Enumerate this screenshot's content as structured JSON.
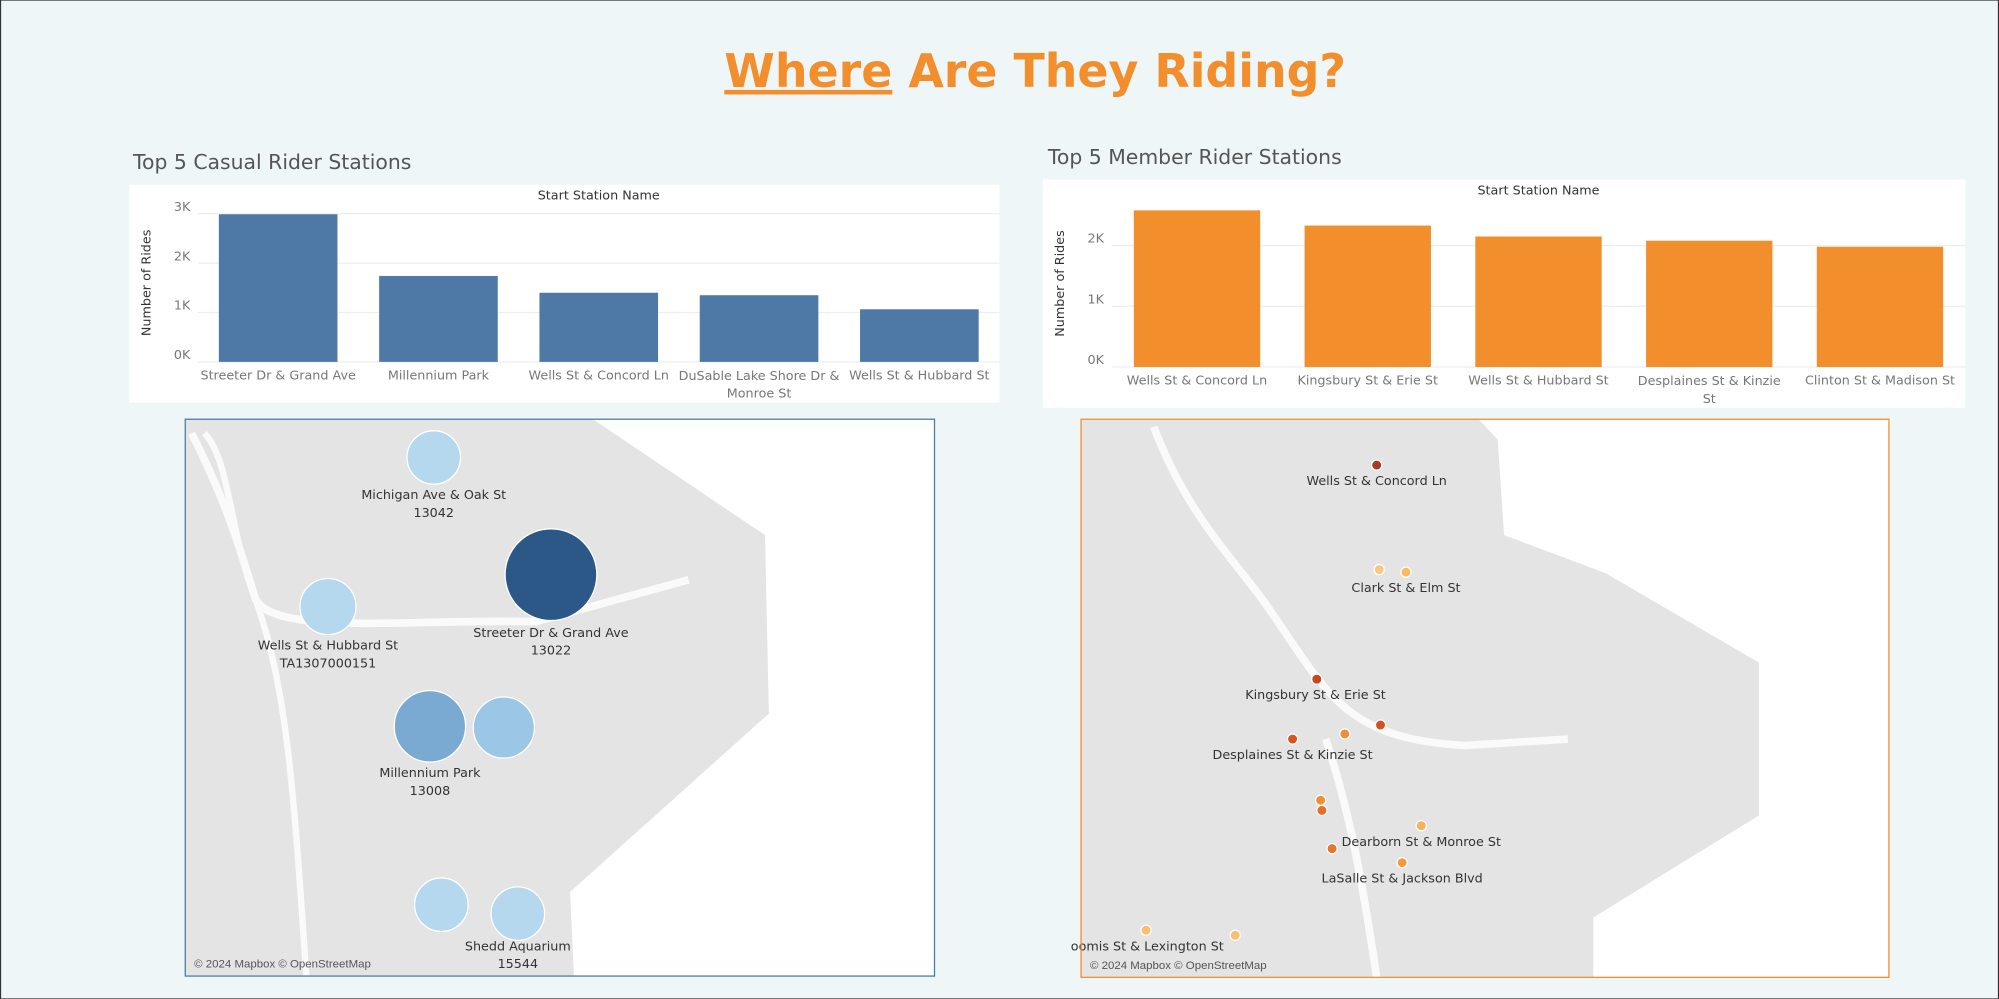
{
  "title": {
    "link": "Where",
    "text": "Are They Riding?"
  },
  "chart_data": [
    {
      "type": "bar",
      "title": "Top 5 Casual Rider Stations",
      "x_label": "Start Station Name",
      "y_label": "Number of Rides",
      "categories": [
        "Streeter Dr & Grand Ave",
        "Millennium Park",
        "Wells St & Concord Ln",
        "DuSable Lake Shore Dr & Monroe St",
        "Wells St & Hubbard St"
      ],
      "values": [
        2990,
        1740,
        1400,
        1350,
        1065
      ],
      "color": "#4e79a7",
      "ylim": [
        0,
        3200
      ],
      "yticks": [
        {
          "value": 0,
          "label": "0K"
        },
        {
          "value": 1000,
          "label": "1K"
        },
        {
          "value": 2000,
          "label": "2K"
        },
        {
          "value": 3000,
          "label": "3K"
        }
      ],
      "grid": true
    },
    {
      "type": "bar",
      "title": "Top 5 Member Rider Stations",
      "x_label": "Start Station Name",
      "y_label": "Number of Rides",
      "categories": [
        "Wells St & Concord Ln",
        "Kingsbury St & Erie St",
        "Wells St & Hubbard St",
        "Desplaines St & Kinzie St",
        "Clinton St & Madison St"
      ],
      "values": [
        2580,
        2330,
        2150,
        2080,
        1980
      ],
      "color": "#f28e2b",
      "ylim": [
        0,
        2750
      ],
      "yticks": [
        {
          "value": 0,
          "label": "0K"
        },
        {
          "value": 1000,
          "label": "1K"
        },
        {
          "value": 2000,
          "label": "2K"
        }
      ],
      "grid": true
    }
  ],
  "maps": [
    {
      "attribution": "© 2024 Mapbox © OpenStreetMap",
      "border": "#4e79a7",
      "markers": [
        {
          "label": "Michigan Ave & Oak St",
          "id": "13042",
          "color": "#b5d8ee"
        },
        {
          "label": "Streeter Dr & Grand Ave",
          "id": "13022",
          "color": "#2c5887"
        },
        {
          "label": "Wells St & Hubbard St",
          "id": "TA1307000151",
          "color": "#b5d8ee"
        },
        {
          "label": "Millennium Park",
          "id": "13008",
          "color": "#7aaad1"
        },
        {
          "label": "Shedd Aquarium",
          "id": "15544",
          "color": "#b5d8ee"
        }
      ]
    },
    {
      "attribution": "© 2024 Mapbox © OpenStreetMap",
      "border": "#f28e2b",
      "markers": [
        {
          "label": "Wells St & Concord Ln",
          "color": "#a63a28"
        },
        {
          "label": "Clark St & Elm St",
          "color": "#fbb966"
        },
        {
          "label": "Kingsbury St & Erie St",
          "color": "#c9441f"
        },
        {
          "label": "Desplaines St & Kinzie St",
          "color": "#d9531e"
        },
        {
          "label": "Dearborn St & Monroe St",
          "color": "#f9b15e"
        },
        {
          "label": "LaSalle St & Jackson Blvd",
          "color": "#f39a3c"
        },
        {
          "label": "oomis St & Lexington St",
          "color": "#fbbd6f"
        }
      ]
    }
  ]
}
